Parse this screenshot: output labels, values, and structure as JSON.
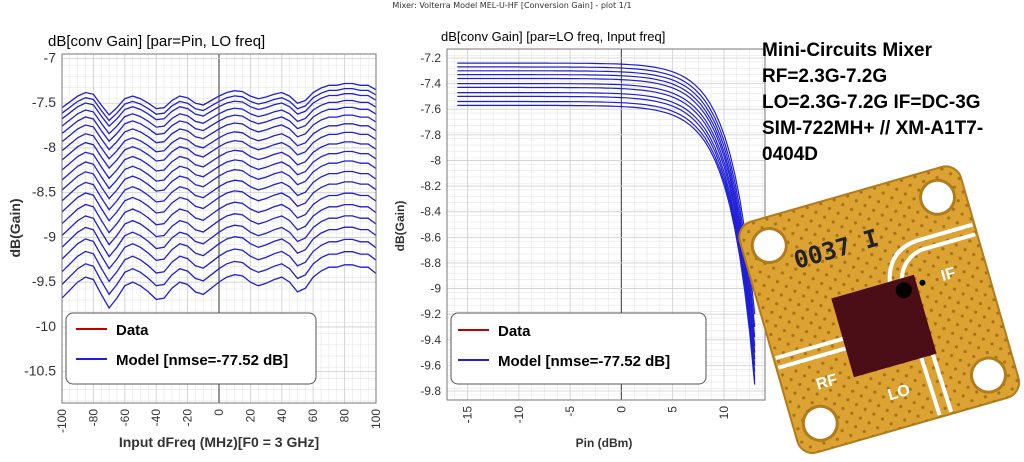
{
  "window": {
    "title": "Mixer: Volterra Model MEL-U-HF [Conversion Gain] - plot 1/1"
  },
  "info_text": {
    "line1": "Mini-Circuits Mixer",
    "line2": "RF=2.3G-7.2G",
    "line3": "LO=2.3G-7.2G IF=DC-3G",
    "line4": "SIM-722MH+ // XM-A1T7-",
    "line5": "0404D"
  },
  "board": {
    "part_marking": "0037 I",
    "port_rf": "RF",
    "port_lo": "LO",
    "port_if": "IF",
    "colors": {
      "pcb": "#dca232",
      "chip": "#4b0d16",
      "trace": "#ffffff"
    }
  },
  "colors": {
    "data": "#c00000",
    "model": "#1f1fd6"
  },
  "chart_data": [
    {
      "type": "line",
      "title": "dB[conv Gain] [par=Pin, LO freq]",
      "xlabel": "Input dFreq (MHz)[F0 = 3 GHz]",
      "ylabel": "dB(Gain)",
      "xlim": [
        -100,
        100
      ],
      "ylim": [
        -10.85,
        -6.95
      ],
      "xticks": [
        "-100",
        "-80",
        "-60",
        "-40",
        "-20",
        "0",
        "20",
        "40",
        "60",
        "80",
        "100"
      ],
      "yticks": [
        "-7",
        "-7.5",
        "-8",
        "-8.5",
        "-9",
        "-9.5",
        "-10",
        "-10.5"
      ],
      "grid": true,
      "legend": {
        "position": "bottom-left",
        "entries": [
          "Data",
          "Model [nmse=-77.52 dB]"
        ]
      },
      "base_shape": {
        "x": [
          -100,
          -90,
          -85,
          -80,
          -75,
          -70,
          -65,
          -60,
          -55,
          -50,
          -45,
          -40,
          -35,
          -30,
          -25,
          -20,
          -15,
          -10,
          -5,
          0,
          5,
          10,
          15,
          20,
          25,
          30,
          35,
          40,
          45,
          50,
          55,
          60,
          65,
          70,
          75,
          80,
          85,
          90,
          95,
          100
        ],
        "y": [
          -7.55,
          -7.42,
          -7.38,
          -7.4,
          -7.52,
          -7.63,
          -7.55,
          -7.45,
          -7.42,
          -7.45,
          -7.5,
          -7.56,
          -7.55,
          -7.47,
          -7.42,
          -7.44,
          -7.5,
          -7.52,
          -7.47,
          -7.42,
          -7.38,
          -7.36,
          -7.37,
          -7.42,
          -7.45,
          -7.43,
          -7.4,
          -7.38,
          -7.42,
          -7.5,
          -7.47,
          -7.38,
          -7.33,
          -7.3,
          -7.3,
          -7.28,
          -7.28,
          -7.3,
          -7.3,
          -7.35
        ]
      },
      "offsets_dB": [
        0,
        -0.06,
        -0.12,
        -0.2,
        -0.28,
        -0.37,
        -0.47,
        -0.57,
        -0.68,
        -0.79,
        -0.9,
        -1.02,
        -1.14,
        -1.27,
        -1.4,
        -1.53,
        -1.66,
        -1.8,
        -1.94,
        -2.09
      ],
      "series_count": 20
    },
    {
      "type": "line",
      "title": "dB[conv Gain] [par=LO freq, Input freq]",
      "xlabel": "Pin (dBm)",
      "ylabel": "dB(Gain)",
      "xlim": [
        -17,
        14
      ],
      "ylim": [
        -9.87,
        -7.13
      ],
      "xticks": [
        "-15",
        "-10",
        "-5",
        "0",
        "5",
        "10"
      ],
      "yticks": [
        "-7.2",
        "-7.4",
        "-7.6",
        "-7.8",
        "-8",
        "-8.2",
        "-8.4",
        "-8.6",
        "-8.8",
        "-9",
        "-9.2",
        "-9.4",
        "-9.6",
        "-9.8"
      ],
      "grid": true,
      "legend": {
        "position": "bottom-left",
        "entries": [
          "Data",
          "Model [nmse=-77.52 dB]"
        ]
      },
      "x_range": [
        -16,
        13
      ],
      "small_signal_gain_dB": [
        -7.24,
        -7.27,
        -7.3,
        -7.33,
        -7.36,
        -7.4,
        -7.43,
        -7.47,
        -7.5,
        -7.54,
        -7.57
      ],
      "compression_end_dB": [
        -9.2,
        -9.3,
        -9.38,
        -9.45,
        -9.5,
        -9.55,
        -9.6,
        -9.65,
        -9.7,
        -9.72,
        -9.75
      ],
      "series_count": 11
    }
  ]
}
